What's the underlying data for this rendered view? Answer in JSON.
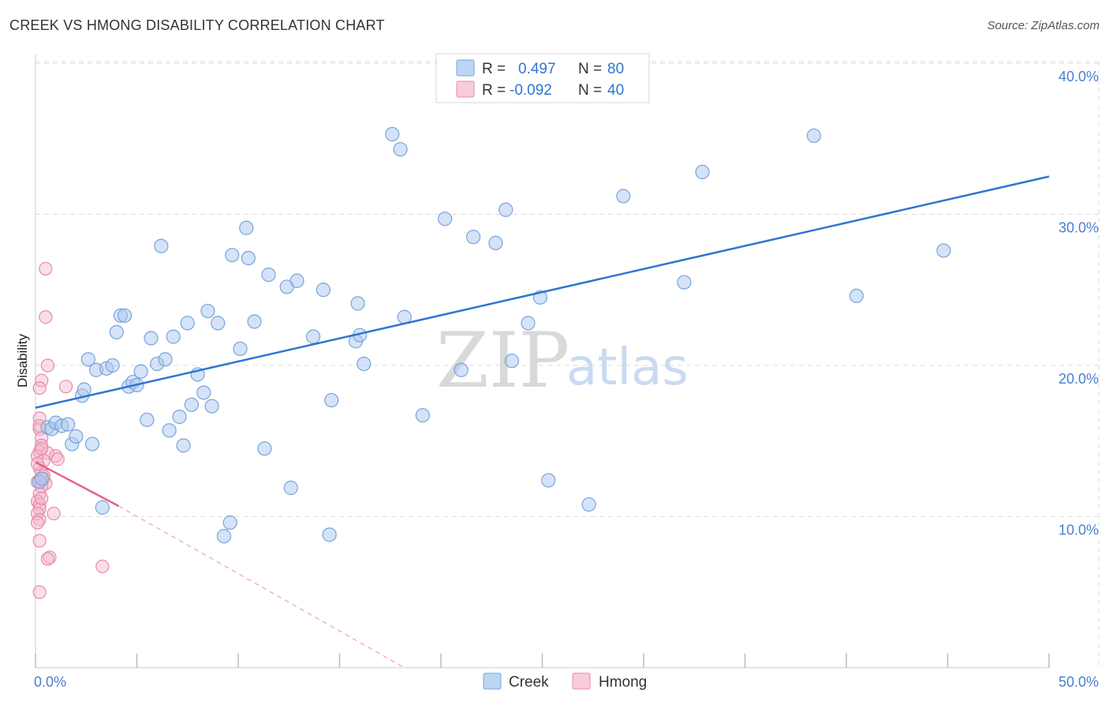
{
  "header": {
    "title": "CREEK VS HMONG DISABILITY CORRELATION CHART",
    "source": "Source: ZipAtlas.com"
  },
  "watermark": {
    "zip": "ZIP",
    "atlas": "atlas"
  },
  "legend_top": {
    "creek": {
      "r_label": "R =",
      "r_value": "0.497",
      "n_label": "N =",
      "n_value": "80"
    },
    "hmong": {
      "r_label": "R =",
      "r_value": "-0.092",
      "n_label": "N =",
      "n_value": "40"
    }
  },
  "legend_bottom": {
    "creek": "Creek",
    "hmong": "Hmong"
  },
  "colors": {
    "creek_fill": "#a9c8f0",
    "creek_stroke": "#7aa3db",
    "creek_line": "#2f76d0",
    "hmong_fill": "#f5b7cb",
    "hmong_stroke": "#e98aa9",
    "hmong_line": "#e8608c",
    "grid": "#dddddd",
    "tick_label": "#4a7fd0"
  },
  "chart_data": {
    "type": "scatter",
    "title": "CREEK VS HMONG DISABILITY CORRELATION CHART",
    "xlabel": "",
    "ylabel": "Disability",
    "xlim": [
      0,
      50
    ],
    "ylim": [
      0,
      42
    ],
    "x_ticks": [
      0,
      50
    ],
    "x_tick_labels": [
      "0.0%",
      "50.0%"
    ],
    "y_ticks": [
      10,
      20,
      30,
      40
    ],
    "y_tick_labels": [
      "10.0%",
      "20.0%",
      "30.0%",
      "40.0%"
    ],
    "grid": true,
    "legend_position": "top-center",
    "series": [
      {
        "name": "Creek",
        "r": 0.497,
        "n": 80,
        "trend": {
          "x": [
            0,
            50
          ],
          "y": [
            17.2,
            32.5
          ],
          "extrapolate_to": 50
        },
        "points": [
          [
            0.2,
            12.3
          ],
          [
            0.6,
            15.9
          ],
          [
            0.8,
            15.8
          ],
          [
            1.0,
            16.2
          ],
          [
            1.3,
            16.0
          ],
          [
            1.6,
            16.1
          ],
          [
            1.8,
            14.8
          ],
          [
            2.0,
            15.3
          ],
          [
            2.3,
            18.0
          ],
          [
            2.4,
            18.4
          ],
          [
            2.6,
            20.4
          ],
          [
            2.8,
            14.8
          ],
          [
            3.0,
            19.7
          ],
          [
            3.3,
            10.6
          ],
          [
            3.5,
            19.8
          ],
          [
            3.8,
            20.0
          ],
          [
            4.0,
            22.2
          ],
          [
            4.2,
            23.3
          ],
          [
            4.4,
            23.3
          ],
          [
            4.6,
            18.6
          ],
          [
            4.8,
            18.9
          ],
          [
            5.0,
            18.7
          ],
          [
            5.2,
            19.6
          ],
          [
            5.5,
            16.4
          ],
          [
            5.7,
            21.8
          ],
          [
            6.0,
            20.1
          ],
          [
            6.2,
            27.9
          ],
          [
            6.4,
            20.4
          ],
          [
            6.6,
            15.7
          ],
          [
            6.8,
            21.9
          ],
          [
            7.1,
            16.6
          ],
          [
            7.3,
            14.7
          ],
          [
            7.5,
            22.8
          ],
          [
            7.7,
            17.4
          ],
          [
            8.0,
            19.4
          ],
          [
            8.3,
            18.2
          ],
          [
            8.5,
            23.6
          ],
          [
            8.7,
            17.3
          ],
          [
            9.0,
            22.8
          ],
          [
            9.3,
            8.7
          ],
          [
            9.6,
            9.6
          ],
          [
            9.7,
            27.3
          ],
          [
            10.1,
            21.1
          ],
          [
            10.4,
            29.1
          ],
          [
            10.5,
            27.1
          ],
          [
            10.8,
            22.9
          ],
          [
            11.3,
            14.5
          ],
          [
            11.5,
            26.0
          ],
          [
            12.4,
            25.2
          ],
          [
            12.6,
            11.9
          ],
          [
            12.9,
            25.6
          ],
          [
            13.7,
            21.9
          ],
          [
            14.2,
            25.0
          ],
          [
            14.5,
            8.8
          ],
          [
            14.6,
            17.7
          ],
          [
            15.8,
            21.6
          ],
          [
            15.9,
            24.1
          ],
          [
            16.0,
            22.0
          ],
          [
            16.2,
            20.1
          ],
          [
            17.6,
            35.3
          ],
          [
            18.0,
            34.3
          ],
          [
            18.2,
            23.2
          ],
          [
            19.1,
            16.7
          ],
          [
            20.2,
            29.7
          ],
          [
            21.0,
            19.7
          ],
          [
            21.6,
            28.5
          ],
          [
            22.7,
            28.1
          ],
          [
            23.2,
            30.3
          ],
          [
            23.5,
            20.3
          ],
          [
            24.3,
            22.8
          ],
          [
            24.9,
            24.5
          ],
          [
            25.3,
            12.4
          ],
          [
            27.3,
            10.8
          ],
          [
            29.0,
            31.2
          ],
          [
            32.0,
            25.5
          ],
          [
            32.9,
            32.8
          ],
          [
            38.4,
            35.2
          ],
          [
            40.5,
            24.6
          ],
          [
            44.8,
            27.6
          ],
          [
            0.3,
            12.5
          ]
        ]
      },
      {
        "name": "Hmong",
        "r": -0.092,
        "n": 40,
        "trend": {
          "x": [
            0,
            4.1
          ],
          "y": [
            13.6,
            10.7
          ],
          "dashed_to": {
            "x": 18.2,
            "y": 0
          }
        },
        "points": [
          [
            0.5,
            26.4
          ],
          [
            0.5,
            23.2
          ],
          [
            0.6,
            20.0
          ],
          [
            0.3,
            19.0
          ],
          [
            0.2,
            18.5
          ],
          [
            1.5,
            18.6
          ],
          [
            0.2,
            16.5
          ],
          [
            0.2,
            15.8
          ],
          [
            0.3,
            15.2
          ],
          [
            0.3,
            14.7
          ],
          [
            0.2,
            14.3
          ],
          [
            0.1,
            14.0
          ],
          [
            0.6,
            14.2
          ],
          [
            0.4,
            13.7
          ],
          [
            1.0,
            14.0
          ],
          [
            1.1,
            13.8
          ],
          [
            0.2,
            13.2
          ],
          [
            0.3,
            12.9
          ],
          [
            0.4,
            12.5
          ],
          [
            0.1,
            12.3
          ],
          [
            0.5,
            12.2
          ],
          [
            0.3,
            12.0
          ],
          [
            0.2,
            11.5
          ],
          [
            0.1,
            11.0
          ],
          [
            0.2,
            10.8
          ],
          [
            0.2,
            10.5
          ],
          [
            0.1,
            10.2
          ],
          [
            0.9,
            10.2
          ],
          [
            0.2,
            9.8
          ],
          [
            0.1,
            9.6
          ],
          [
            0.2,
            8.4
          ],
          [
            0.7,
            7.3
          ],
          [
            0.6,
            7.2
          ],
          [
            3.3,
            6.7
          ],
          [
            0.2,
            5.0
          ],
          [
            0.3,
            14.5
          ],
          [
            0.4,
            12.7
          ],
          [
            0.2,
            16.0
          ],
          [
            0.1,
            13.5
          ],
          [
            0.3,
            11.2
          ]
        ]
      }
    ]
  }
}
